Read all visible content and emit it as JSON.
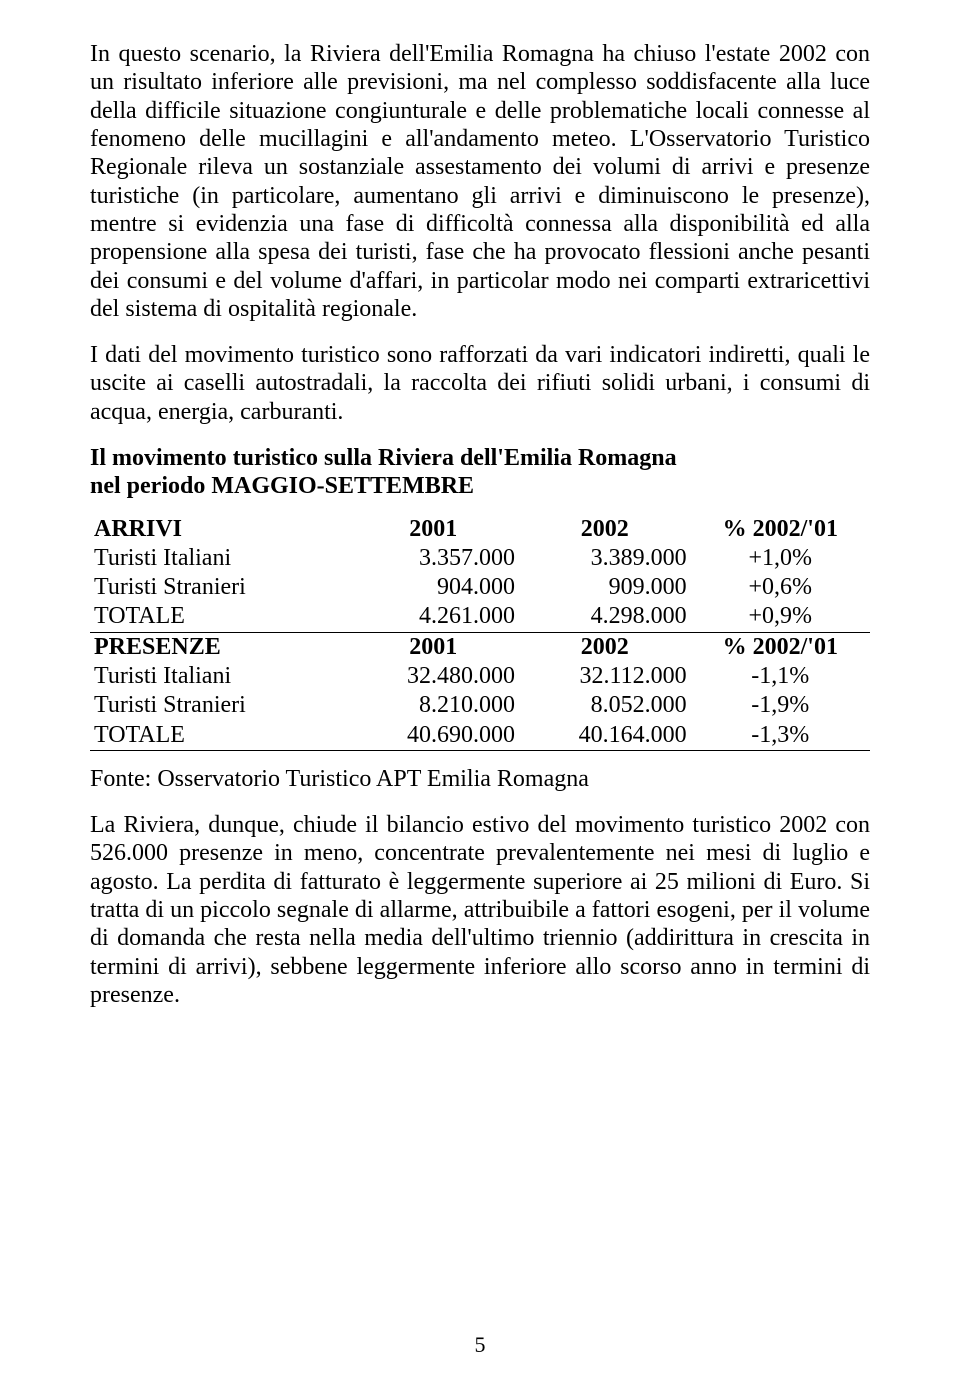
{
  "page_number": "5",
  "body": {
    "p1": "In questo scenario, la Riviera dell'Emilia Romagna ha chiuso l'estate 2002 con un risultato inferiore alle previsioni, ma nel complesso soddisfacente alla luce della difficile situazione congiunturale e delle problematiche locali connesse al fenomeno delle mucillagini e all'andamento meteo.",
    "p2": "L'Osservatorio Turistico Regionale rileva un sostanziale assestamento dei volumi di arrivi e presenze turistiche (in particolare, aumentano gli arrivi e diminuiscono le presenze), mentre si evidenzia una fase di difficoltà connessa alla disponibilità ed alla propensione alla spesa dei turisti, fase che ha provocato flessioni anche pesanti dei consumi e del volume d'affari, in particolar modo nei comparti extraricettivi del sistema di ospitalità regionale.",
    "p3": "I dati del movimento turistico sono rafforzati da vari indicatori indiretti, quali le uscite ai caselli autostradali, la raccolta dei rifiuti solidi urbani, i consumi di acqua, energia, carburanti."
  },
  "table_heading": {
    "line1": "Il movimento turistico sulla Riviera dell'Emilia Romagna",
    "line2": "nel periodo MAGGIO-SETTEMBRE"
  },
  "table": {
    "head1": {
      "c0": "ARRIVI",
      "c1": "2001",
      "c2": "2002",
      "c3": "% 2002/'01"
    },
    "r1": {
      "c0": "Turisti Italiani",
      "c1": "3.357.000",
      "c2": "3.389.000",
      "c3": "+1,0%"
    },
    "r2": {
      "c0": "Turisti Stranieri",
      "c1": "904.000",
      "c2": "909.000",
      "c3": "+0,6%"
    },
    "r3": {
      "c0": "TOTALE",
      "c1": "4.261.000",
      "c2": "4.298.000",
      "c3": "+0,9%"
    },
    "head2": {
      "c0": "PRESENZE",
      "c1": "2001",
      "c2": "2002",
      "c3": "% 2002/'01"
    },
    "r4": {
      "c0": "Turisti Italiani",
      "c1": "32.480.000",
      "c2": "32.112.000",
      "c3": "-1,1%"
    },
    "r5": {
      "c0": "Turisti Stranieri",
      "c1": "8.210.000",
      "c2": "8.052.000",
      "c3": "-1,9%"
    },
    "r6": {
      "c0": "TOTALE",
      "c1": "40.690.000",
      "c2": "40.164.000",
      "c3": "-1,3%"
    }
  },
  "source": "Fonte: Osservatorio Turistico APT Emilia Romagna",
  "closing": {
    "p1": "La Riviera, dunque, chiude il bilancio estivo del movimento turistico 2002 con 526.000 presenze in meno, concentrate prevalentemente nei mesi di luglio e agosto. La perdita di fatturato è leggermente superiore ai 25 milioni di Euro. Si tratta di un piccolo segnale di allarme, attribuibile a fattori esogeni, per il volume di domanda che resta nella media dell'ultimo triennio (addirittura in crescita in termini di arrivi), sebbene leggermente inferiore allo scorso anno in termini di presenze."
  }
}
